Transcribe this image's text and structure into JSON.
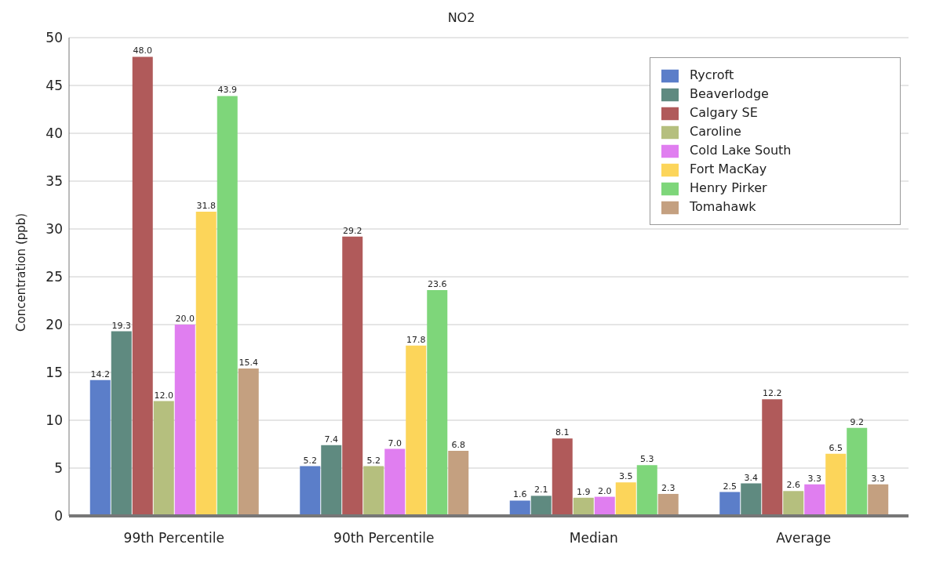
{
  "chart_data": {
    "type": "bar",
    "title": "NO2",
    "ylabel": "Concentration (ppb)",
    "categories": [
      "99th Percentile",
      "90th Percentile",
      "Median",
      "Average"
    ],
    "ylim": [
      0,
      50
    ],
    "yticks": [
      0,
      5,
      10,
      15,
      20,
      25,
      30,
      35,
      40,
      45,
      50
    ],
    "grid": "y",
    "legend": "top right",
    "series": [
      {
        "name": "Rycroft",
        "color": "#5b7ec9",
        "values": [
          14.2,
          5.2,
          1.6,
          2.5
        ],
        "value_labels": [
          "14.2",
          "5.2",
          "1.6",
          "2.5"
        ]
      },
      {
        "name": "Beaverlodge",
        "color": "#5f8a80",
        "values": [
          19.3,
          7.4,
          2.1,
          3.4
        ],
        "value_labels": [
          "19.3",
          "7.4",
          "2.1",
          "3.4"
        ]
      },
      {
        "name": "Calgary SE",
        "color": "#b05a5a",
        "values": [
          48.0,
          29.2,
          8.1,
          12.2
        ],
        "value_labels": [
          "48.0",
          "29.2",
          "8.1",
          "12.2"
        ]
      },
      {
        "name": "Caroline",
        "color": "#b5bf7e",
        "values": [
          12.0,
          5.2,
          1.9,
          2.6
        ],
        "value_labels": [
          "12.0",
          "5.2",
          "1.9",
          "2.6"
        ]
      },
      {
        "name": "Cold Lake South",
        "color": "#e07ef0",
        "values": [
          20.0,
          7.0,
          2.0,
          3.3
        ],
        "value_labels": [
          "20.0",
          "7.0",
          "2.0",
          "3.3"
        ]
      },
      {
        "name": "Fort MacKay",
        "color": "#fcd55a",
        "values": [
          31.8,
          17.8,
          3.5,
          6.5
        ],
        "value_labels": [
          "31.8",
          "17.8",
          "3.5",
          "6.5"
        ]
      },
      {
        "name": "Henry Pirker",
        "color": "#7ed67a",
        "values": [
          43.9,
          23.6,
          5.3,
          9.2
        ],
        "value_labels": [
          "43.9",
          "23.6",
          "5.3",
          "9.2"
        ]
      },
      {
        "name": "Tomahawk",
        "color": "#c4a080",
        "values": [
          15.4,
          6.8,
          2.3,
          3.3
        ],
        "value_labels": [
          "15.4",
          "6.8",
          "2.3",
          "3.3"
        ]
      }
    ]
  }
}
